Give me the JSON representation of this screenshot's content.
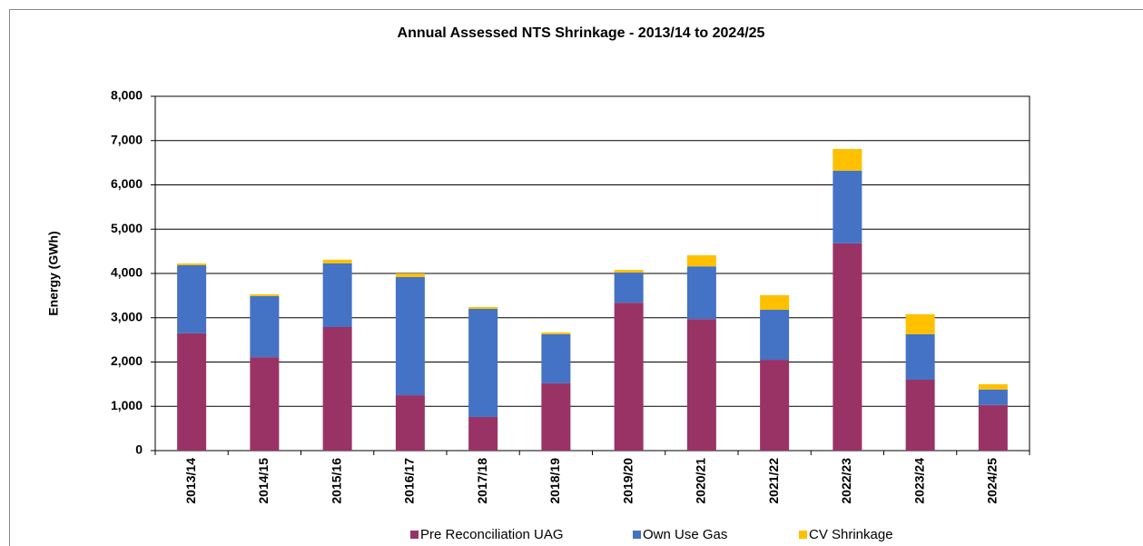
{
  "chart_data": {
    "type": "stacked_bar",
    "title": "Annual Assessed NTS Shrinkage - 2013/14 to 2024/25",
    "y_label": "Energy (GWh)",
    "categories": [
      "2013/14",
      "2014/15",
      "2015/16",
      "2016/17",
      "2017/18",
      "2018/19",
      "2019/20",
      "2020/21",
      "2021/22",
      "2022/23",
      "2023/24",
      "2024/25"
    ],
    "series": [
      {
        "name": "Pre Reconciliation UAG",
        "color": "#993366",
        "values": [
          2650,
          2110,
          2790,
          1250,
          760,
          1520,
          3340,
          2970,
          2050,
          4680,
          1600,
          1030
        ]
      },
      {
        "name": "Own Use Gas",
        "color": "#4472C4",
        "values": [
          1535,
          1380,
          1440,
          2670,
          2440,
          1110,
          680,
          1190,
          1130,
          1640,
          1030,
          350
        ]
      },
      {
        "name": "CV Shrinkage",
        "color": "#FFC000",
        "values": [
          40,
          40,
          80,
          80,
          40,
          40,
          60,
          250,
          330,
          490,
          450,
          120
        ]
      }
    ],
    "ylim": [
      0,
      8000
    ],
    "yticks": [
      0,
      {
        "value": 1000,
        "label": "1,000"
      },
      {
        "value": 2000,
        "label": "2,000"
      },
      {
        "value": 3000,
        "label": "3,000"
      },
      {
        "value": 4000,
        "label": "4,000"
      },
      {
        "value": 5000,
        "label": "5,000"
      },
      {
        "value": 6000,
        "label": "6,000"
      },
      {
        "value": 7000,
        "label": "7,000"
      },
      {
        "value": 8000,
        "label": "8,000"
      }
    ],
    "grid": true,
    "legend": "bottom"
  }
}
